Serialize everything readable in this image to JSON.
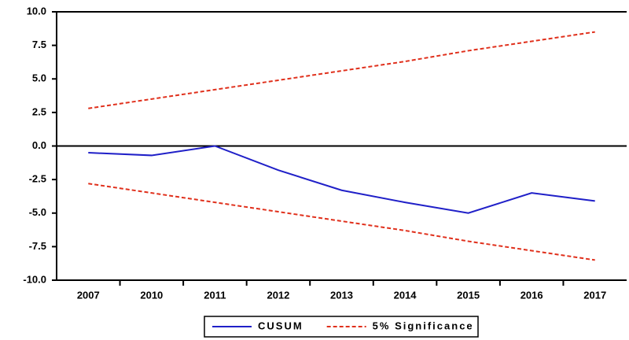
{
  "chart_data": {
    "type": "line",
    "categories": [
      "2007",
      "2010",
      "2011",
      "2012",
      "2013",
      "2014",
      "2015",
      "2016",
      "2017"
    ],
    "series": [
      {
        "name": "CUSUM",
        "color": "#2020c8",
        "dash": false,
        "values": [
          -0.5,
          -0.7,
          0.0,
          -1.8,
          -3.3,
          -4.2,
          -5.0,
          -3.5,
          -4.1
        ]
      },
      {
        "name": "5% Significance",
        "color": "#e0301c",
        "dash": true,
        "values": [
          2.8,
          3.5,
          4.2,
          4.9,
          5.6,
          6.3,
          7.1,
          7.8,
          8.5
        ],
        "lower_values": [
          -2.8,
          -3.5,
          -4.2,
          -4.9,
          -5.6,
          -6.3,
          -7.1,
          -7.8,
          -8.5
        ]
      }
    ],
    "ylim": [
      -10,
      10
    ],
    "yticks": [
      {
        "value": -10,
        "label": "-10.0"
      },
      {
        "value": -7.5,
        "label": "-7.5"
      },
      {
        "value": -5,
        "label": "-5.0"
      },
      {
        "value": -2.5,
        "label": "-2.5"
      },
      {
        "value": 0,
        "label": "0.0"
      },
      {
        "value": 2.5,
        "label": "2.5"
      },
      {
        "value": 5,
        "label": "5.0"
      },
      {
        "value": 7.5,
        "label": "7.5"
      },
      {
        "value": 10,
        "label": "10.0"
      }
    ],
    "legend": "bottom"
  }
}
